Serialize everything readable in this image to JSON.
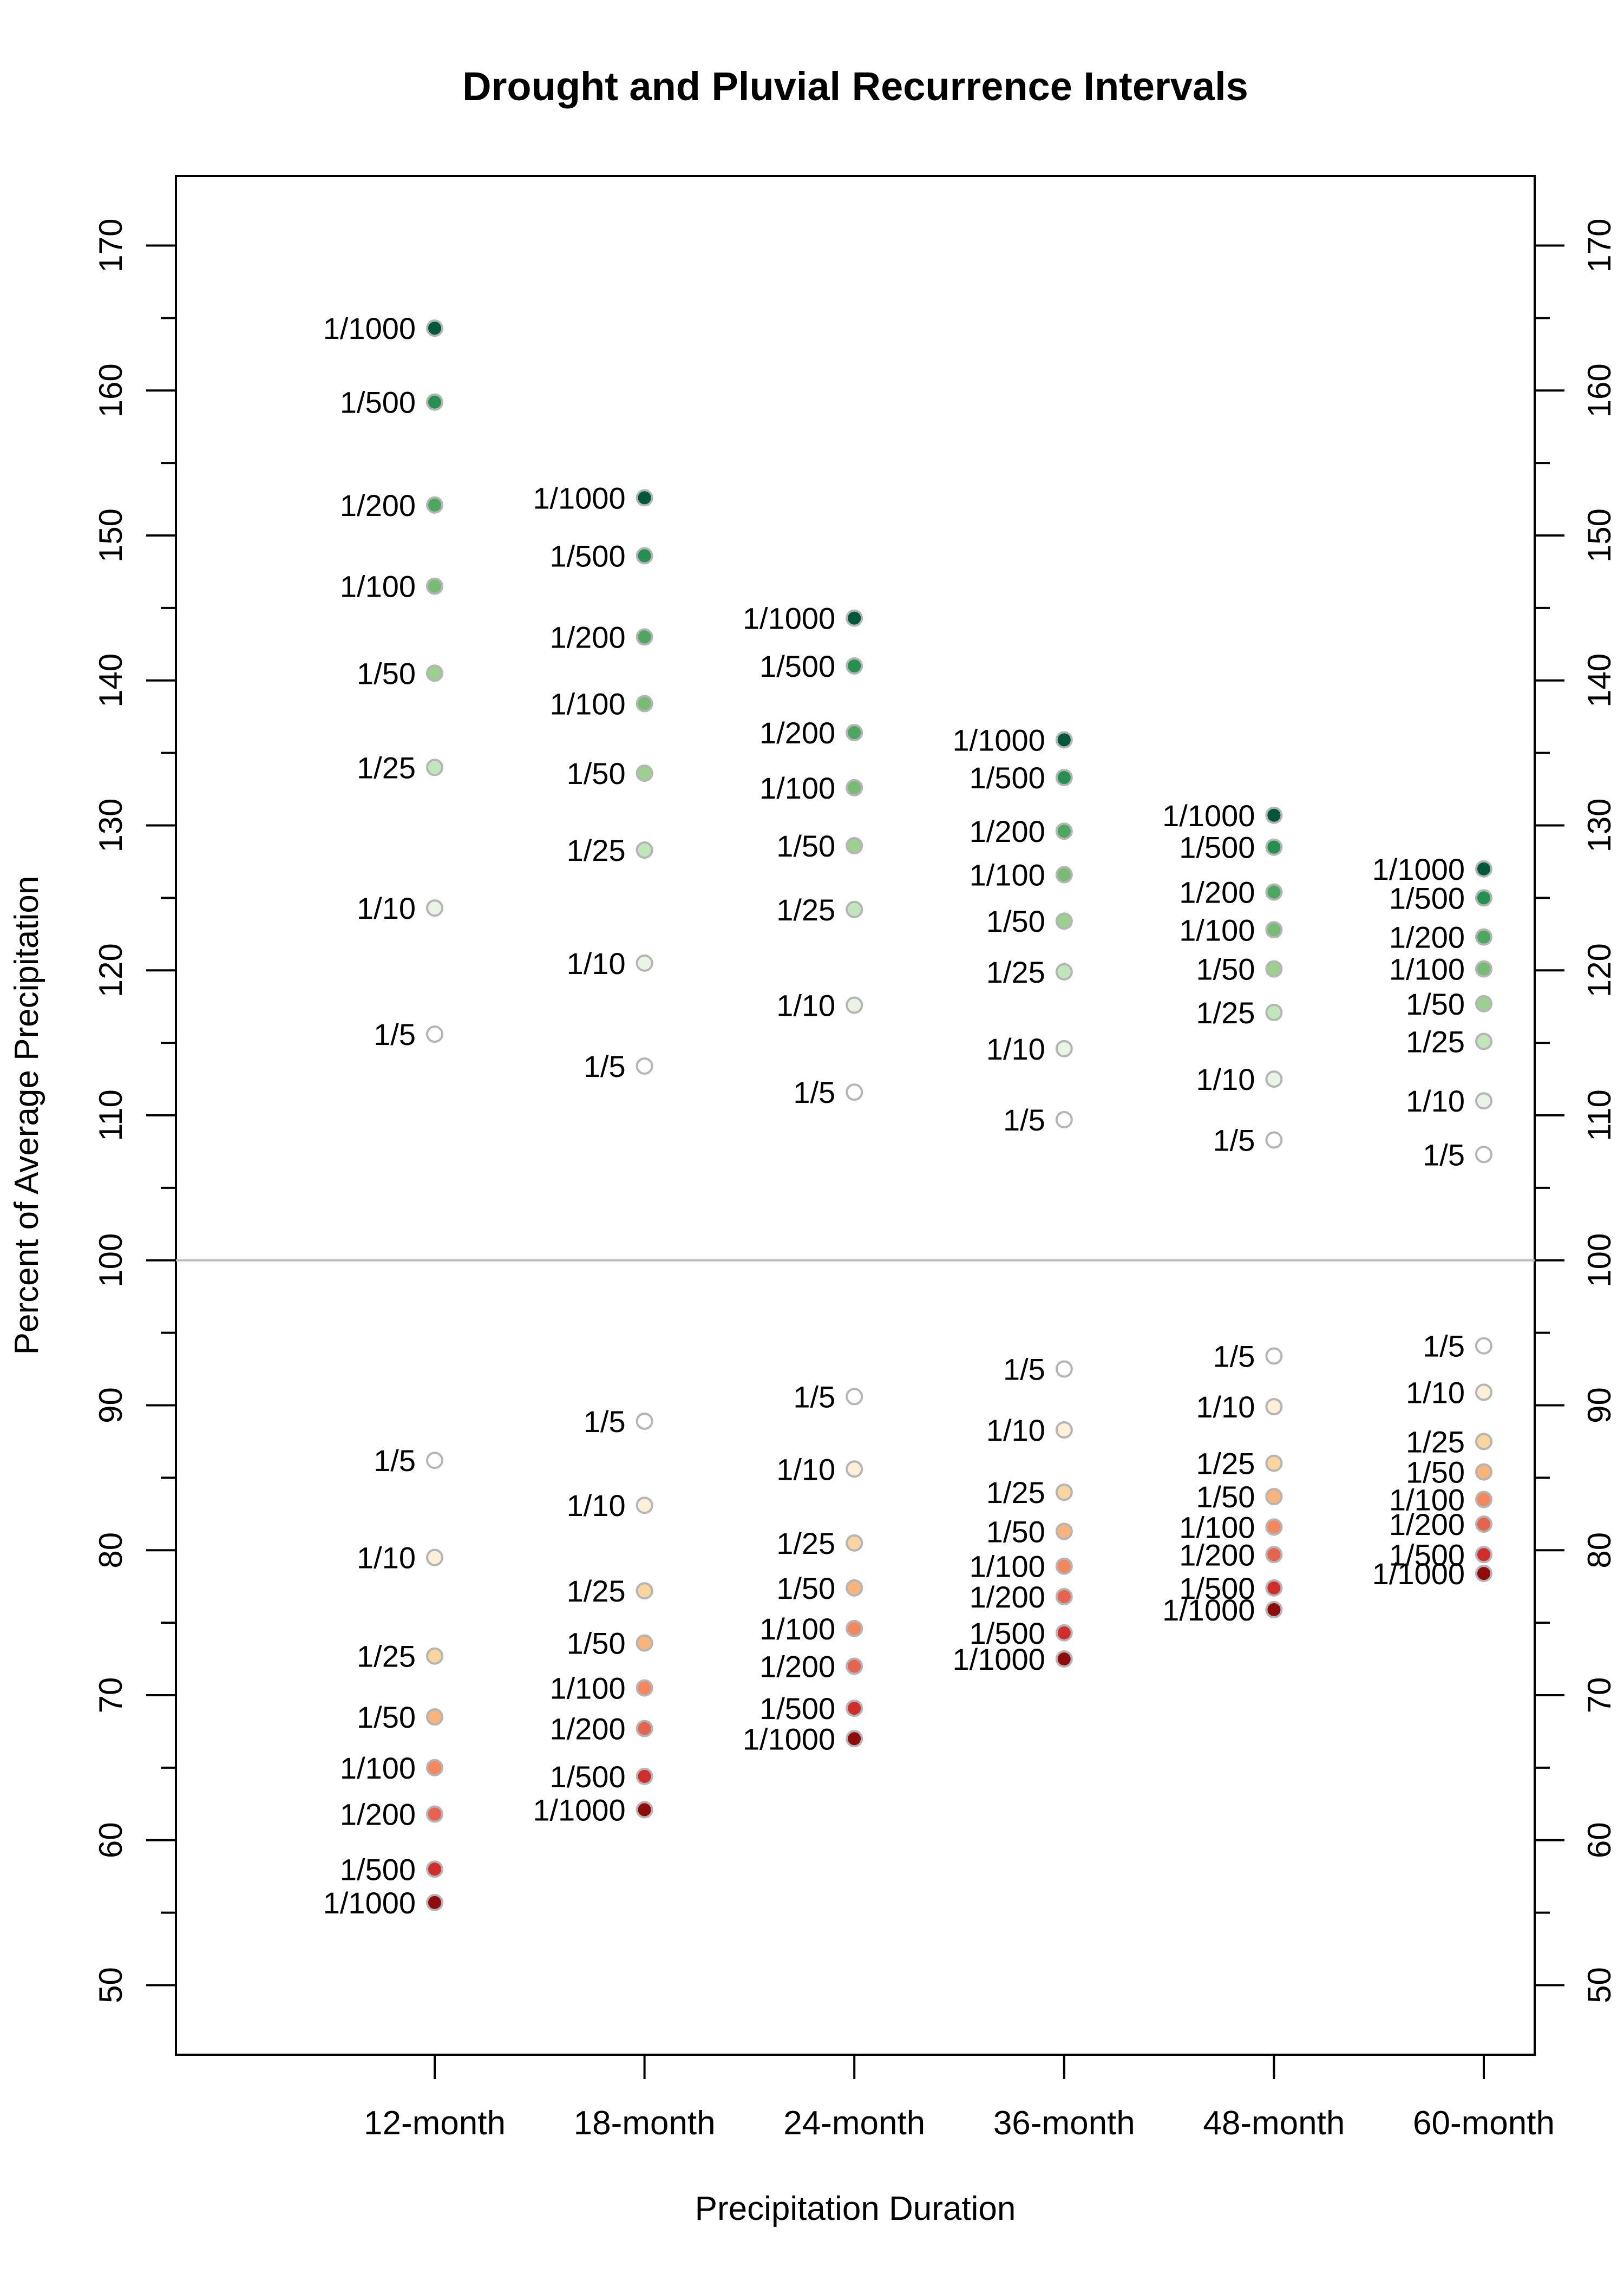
{
  "chart_data": {
    "type": "scatter",
    "title": "Drought and Pluvial Recurrence Intervals",
    "xlabel": "Precipitation Duration",
    "ylabel": "Percent of Average Precipitation",
    "categories": [
      "12-month",
      "18-month",
      "24-month",
      "36-month",
      "48-month",
      "60-month"
    ],
    "ylim": [
      45.2,
      174.8
    ],
    "yticks": [
      50,
      60,
      70,
      80,
      90,
      100,
      110,
      120,
      130,
      140,
      150,
      160,
      170
    ],
    "yticks_labels": [
      "50",
      "60",
      "70",
      "80",
      "90",
      "100",
      "110",
      "120",
      "130",
      "140",
      "150",
      "160",
      "170"
    ],
    "reference_line": 100,
    "series": [
      {
        "name": "pluvial",
        "labels": [
          "1/1000",
          "1/500",
          "1/200",
          "1/100",
          "1/50",
          "1/25",
          "1/10",
          "1/5"
        ],
        "colors": [
          "#00573a",
          "#25904f",
          "#4ea760",
          "#78bb74",
          "#9cd08f",
          "#c2e6bb",
          "#e9f4e4",
          "#ffffff"
        ],
        "values": [
          [
            164.3,
            159.2,
            152.1,
            146.5,
            140.5,
            134.0,
            124.3,
            115.6
          ],
          [
            152.6,
            148.6,
            143.0,
            138.4,
            133.6,
            128.3,
            120.5,
            113.4
          ],
          [
            144.3,
            141.0,
            136.4,
            132.6,
            128.6,
            124.2,
            117.6,
            111.6
          ],
          [
            135.9,
            133.3,
            129.6,
            126.6,
            123.4,
            119.9,
            114.6,
            109.7
          ],
          [
            130.7,
            128.5,
            125.4,
            122.8,
            120.1,
            117.1,
            112.5,
            108.3
          ],
          [
            127.0,
            125.0,
            122.3,
            120.1,
            117.7,
            115.1,
            111.0,
            107.3
          ]
        ]
      },
      {
        "name": "drought",
        "labels": [
          "1/5",
          "1/10",
          "1/25",
          "1/50",
          "1/100",
          "1/200",
          "1/500",
          "1/1000"
        ],
        "colors": [
          "#ffffff",
          "#fdefd8",
          "#fad59f",
          "#f9b47c",
          "#f4875d",
          "#e5634f",
          "#cf2e2c",
          "#8f0c0c"
        ],
        "values": [
          [
            86.2,
            79.5,
            72.7,
            68.5,
            65.0,
            61.8,
            58.0,
            55.7
          ],
          [
            88.9,
            83.1,
            77.2,
            73.6,
            70.5,
            67.7,
            64.4,
            62.1
          ],
          [
            90.6,
            85.6,
            80.5,
            77.4,
            74.6,
            72.0,
            69.1,
            67.0
          ],
          [
            92.5,
            88.3,
            84.0,
            81.3,
            78.9,
            76.8,
            74.3,
            72.5
          ],
          [
            93.4,
            89.9,
            86.0,
            83.7,
            81.6,
            79.7,
            77.4,
            75.9
          ],
          [
            94.1,
            90.9,
            87.5,
            85.4,
            83.5,
            81.8,
            79.7,
            78.4
          ]
        ]
      }
    ]
  }
}
